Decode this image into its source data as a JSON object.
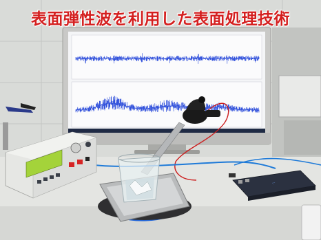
{
  "caption": {
    "text": "表面弾性波を利用した表面処理技術",
    "color": "#d41f1f"
  },
  "colors": {
    "waveform": "#1c3fd8",
    "monitor_bezel": "#c9c9c7",
    "monitor_screen_bg": "#f4f5f7",
    "generator_body": "#e6e7e4",
    "generator_lcd": "#a4d33a",
    "probe_box": "#2b3140",
    "red_cable": "#cc1f1f",
    "blue_cable": "#1e7ad8"
  },
  "objects": {
    "monitor": "monitor",
    "top_waveform": "top-waveform",
    "bottom_waveform": "bottom-waveform",
    "function_generator": "function-generator",
    "transducer": "ultrasonic-transducer",
    "beaker": "glass-beaker",
    "tray": "metal-tray",
    "usb_scope": "usb-oscilloscope-probe"
  }
}
